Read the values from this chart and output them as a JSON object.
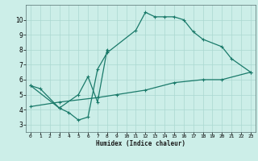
{
  "xlabel": "Humidex (Indice chaleur)",
  "xlim": [
    -0.5,
    23.5
  ],
  "ylim": [
    2.5,
    11.0
  ],
  "yticks": [
    3,
    4,
    5,
    6,
    7,
    8,
    9,
    10
  ],
  "xticks": [
    0,
    1,
    2,
    3,
    4,
    5,
    6,
    7,
    8,
    9,
    10,
    11,
    12,
    13,
    14,
    15,
    16,
    17,
    18,
    19,
    20,
    21,
    22,
    23
  ],
  "background_color": "#cceee8",
  "grid_color": "#aad8d0",
  "line_color": "#1a7a6a",
  "upper_line_x": [
    0,
    1,
    3,
    4,
    5,
    6,
    7,
    8,
    11,
    12,
    13,
    14,
    15,
    16,
    17,
    18,
    20,
    21,
    23
  ],
  "upper_line_y": [
    5.6,
    5.4,
    4.1,
    3.8,
    3.3,
    3.5,
    6.7,
    7.8,
    9.3,
    10.5,
    10.2,
    10.2,
    10.2,
    10.0,
    9.2,
    8.7,
    8.2,
    7.4,
    6.5
  ],
  "upper_line_breaks": [
    [
      0,
      1
    ],
    [
      1,
      3
    ],
    [
      3,
      8
    ],
    [
      8,
      11
    ],
    [
      11,
      18
    ],
    [
      18,
      20
    ],
    [
      20,
      21
    ],
    [
      21,
      23
    ]
  ],
  "middle_line_x": [
    0,
    3,
    5,
    6,
    7,
    8
  ],
  "middle_line_y": [
    5.6,
    4.1,
    5.0,
    6.2,
    4.5,
    8.0
  ],
  "lower_line_x": [
    0,
    3,
    7,
    9,
    12,
    15,
    18,
    20,
    23
  ],
  "lower_line_y": [
    4.2,
    4.5,
    4.8,
    5.0,
    5.3,
    5.8,
    6.0,
    6.0,
    6.5
  ]
}
